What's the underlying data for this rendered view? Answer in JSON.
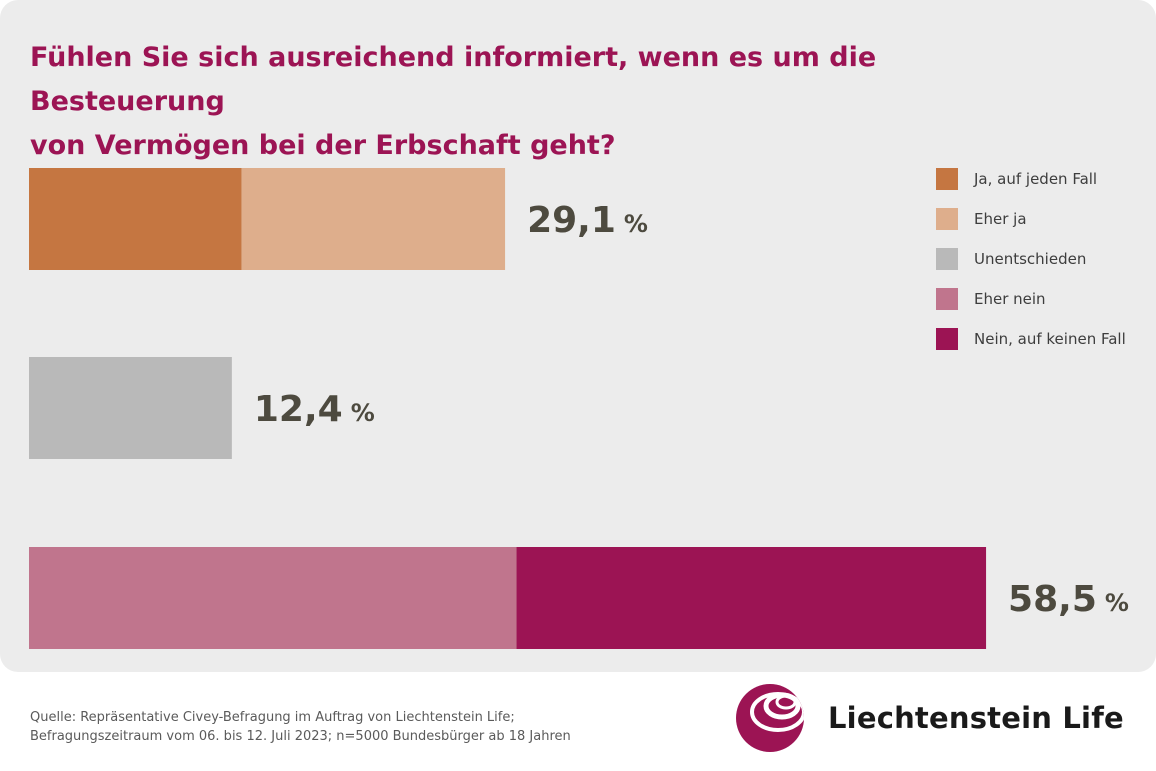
{
  "title": {
    "line1": "Fühlen Sie sich ausreichend informiert, wenn es um die Besteuerung",
    "line2": "von Vermögen bei der Erbschaft geht?"
  },
  "colors": {
    "accent": "#9c1454",
    "value_text": "#4d4a3f",
    "panel": "#ececec"
  },
  "chart_data": {
    "type": "bar",
    "orientation": "horizontal",
    "stacked": true,
    "title": "Fühlen Sie sich ausreichend informiert, wenn es um die Besteuerung von Vermögen bei der Erbschaft geht?",
    "unit": "%",
    "xlim": [
      0,
      60
    ],
    "series": [
      {
        "name": "Ja, auf jeden Fall",
        "color": "#c57641"
      },
      {
        "name": "Eher ja",
        "color": "#deae8c"
      },
      {
        "name": "Unentschieden",
        "color": "#b9b9b9"
      },
      {
        "name": "Eher nein",
        "color": "#c0758d"
      },
      {
        "name": "Nein, auf keinen Fall",
        "color": "#9c1454"
      }
    ],
    "bars": [
      {
        "total_label": "29,1",
        "segments": [
          {
            "series": "Ja, auf jeden Fall",
            "value": 13.0
          },
          {
            "series": "Eher ja",
            "value": 16.1
          }
        ]
      },
      {
        "total_label": "12,4",
        "segments": [
          {
            "series": "Unentschieden",
            "value": 12.4
          }
        ]
      },
      {
        "total_label": "58,5",
        "segments": [
          {
            "series": "Eher nein",
            "value": 29.8
          },
          {
            "series": "Nein, auf keinen Fall",
            "value": 28.7
          }
        ]
      }
    ],
    "legend_position": "right"
  },
  "source": {
    "line1": "Quelle: Repräsentative Civey-Befragung im Auftrag von Liechtenstein Life;",
    "line2": "Befragungszeitraum vom 06. bis 12. Juli 2023; n=5000 Bundesbürger ab 18 Jahren"
  },
  "brand": {
    "name": "Liechtenstein Life",
    "logo_icon": "spiral-sphere-icon"
  }
}
